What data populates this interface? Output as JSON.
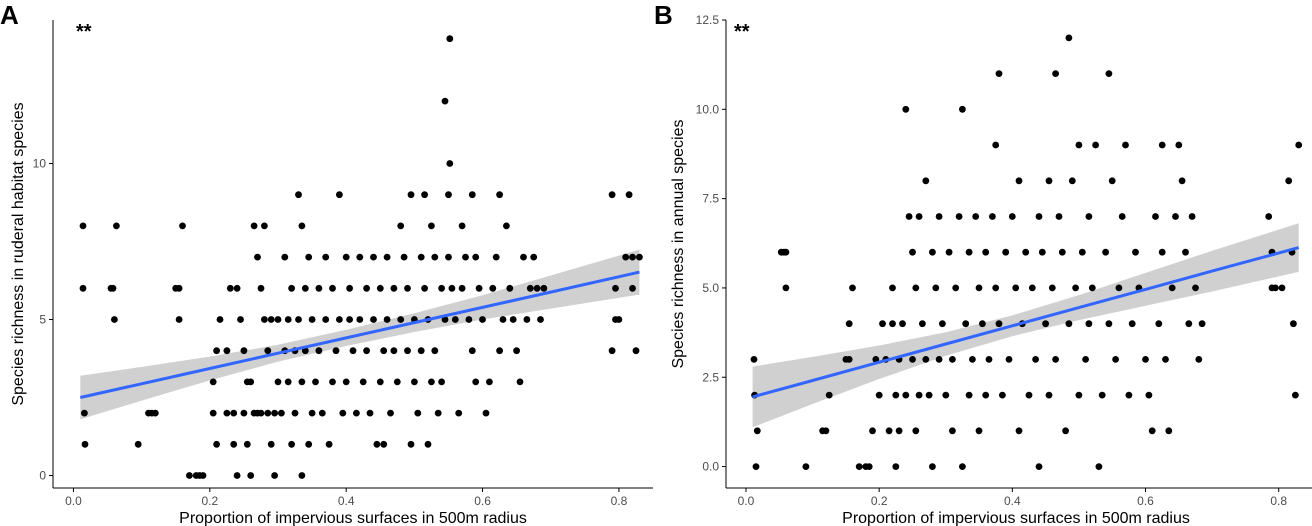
{
  "chart_data": [
    {
      "panel_label": "A",
      "type": "scatter",
      "significance": "**",
      "xlabel": "Proportion of impervious surfaces in 500m radius",
      "ylabel": "Species richness in ruderal habitat species",
      "xlim": [
        -0.03,
        0.85
      ],
      "ylim": [
        -0.4,
        14.6
      ],
      "xticks": [
        0.0,
        0.2,
        0.4,
        0.6,
        0.8
      ],
      "xtick_labels": [
        "0.0",
        "0.2",
        "0.4",
        "0.6",
        "0.8"
      ],
      "yticks": [
        0,
        5,
        10
      ],
      "ytick_labels": [
        "0",
        "5",
        "10"
      ],
      "fit_line": {
        "x": [
          0.01,
          0.1,
          0.2,
          0.3,
          0.4,
          0.5,
          0.6,
          0.7,
          0.83
        ],
        "y": [
          2.5,
          2.94,
          3.43,
          3.92,
          4.41,
          4.9,
          5.39,
          5.88,
          6.52
        ],
        "ci_low": [
          1.8,
          2.4,
          3.05,
          3.65,
          4.15,
          4.6,
          5.0,
          5.35,
          5.8
        ],
        "ci_high": [
          3.2,
          3.48,
          3.81,
          4.19,
          4.67,
          5.2,
          5.78,
          6.41,
          7.24
        ],
        "color": "#3366ff",
        "band_color": "#c8c8c8"
      },
      "points": [
        [
          0.014,
          8
        ],
        [
          0.014,
          6
        ],
        [
          0.016,
          2
        ],
        [
          0.017,
          1
        ],
        [
          0.055,
          6
        ],
        [
          0.058,
          6
        ],
        [
          0.06,
          5
        ],
        [
          0.063,
          8
        ],
        [
          0.095,
          1
        ],
        [
          0.11,
          2
        ],
        [
          0.115,
          2
        ],
        [
          0.12,
          2
        ],
        [
          0.15,
          6
        ],
        [
          0.155,
          6
        ],
        [
          0.155,
          5
        ],
        [
          0.16,
          8
        ],
        [
          0.17,
          0
        ],
        [
          0.18,
          0
        ],
        [
          0.185,
          0
        ],
        [
          0.19,
          0
        ],
        [
          0.205,
          3
        ],
        [
          0.205,
          2
        ],
        [
          0.21,
          1
        ],
        [
          0.21,
          4
        ],
        [
          0.215,
          5
        ],
        [
          0.225,
          4
        ],
        [
          0.225,
          2
        ],
        [
          0.23,
          6
        ],
        [
          0.235,
          2
        ],
        [
          0.235,
          1
        ],
        [
          0.24,
          6
        ],
        [
          0.24,
          0
        ],
        [
          0.245,
          5
        ],
        [
          0.25,
          2
        ],
        [
          0.25,
          4
        ],
        [
          0.255,
          3
        ],
        [
          0.255,
          1
        ],
        [
          0.26,
          3
        ],
        [
          0.26,
          0
        ],
        [
          0.265,
          2
        ],
        [
          0.265,
          8
        ],
        [
          0.27,
          7
        ],
        [
          0.27,
          2
        ],
        [
          0.275,
          2
        ],
        [
          0.275,
          6
        ],
        [
          0.28,
          5
        ],
        [
          0.28,
          8
        ],
        [
          0.285,
          4
        ],
        [
          0.285,
          2
        ],
        [
          0.29,
          1
        ],
        [
          0.29,
          5
        ],
        [
          0.295,
          2
        ],
        [
          0.295,
          0
        ],
        [
          0.3,
          3
        ],
        [
          0.3,
          5
        ],
        [
          0.305,
          2
        ],
        [
          0.31,
          4
        ],
        [
          0.31,
          7
        ],
        [
          0.315,
          5
        ],
        [
          0.315,
          3
        ],
        [
          0.32,
          6
        ],
        [
          0.32,
          1
        ],
        [
          0.325,
          4
        ],
        [
          0.325,
          2
        ],
        [
          0.33,
          9
        ],
        [
          0.33,
          5
        ],
        [
          0.335,
          8
        ],
        [
          0.335,
          3
        ],
        [
          0.335,
          0
        ],
        [
          0.34,
          6
        ],
        [
          0.34,
          4
        ],
        [
          0.345,
          7
        ],
        [
          0.345,
          1
        ],
        [
          0.35,
          2
        ],
        [
          0.35,
          5
        ],
        [
          0.355,
          3
        ],
        [
          0.36,
          6
        ],
        [
          0.36,
          4
        ],
        [
          0.365,
          2
        ],
        [
          0.37,
          7
        ],
        [
          0.37,
          5
        ],
        [
          0.375,
          1
        ],
        [
          0.38,
          3
        ],
        [
          0.38,
          6
        ],
        [
          0.385,
          4
        ],
        [
          0.39,
          9
        ],
        [
          0.39,
          5
        ],
        [
          0.395,
          2
        ],
        [
          0.4,
          7
        ],
        [
          0.4,
          3
        ],
        [
          0.405,
          6
        ],
        [
          0.405,
          5
        ],
        [
          0.41,
          4
        ],
        [
          0.415,
          2
        ],
        [
          0.42,
          7
        ],
        [
          0.42,
          5
        ],
        [
          0.425,
          3
        ],
        [
          0.43,
          6
        ],
        [
          0.43,
          4
        ],
        [
          0.435,
          2
        ],
        [
          0.44,
          5
        ],
        [
          0.44,
          7
        ],
        [
          0.445,
          1
        ],
        [
          0.45,
          3
        ],
        [
          0.45,
          6
        ],
        [
          0.455,
          4
        ],
        [
          0.455,
          1
        ],
        [
          0.46,
          5
        ],
        [
          0.46,
          7
        ],
        [
          0.465,
          2
        ],
        [
          0.47,
          6
        ],
        [
          0.47,
          4
        ],
        [
          0.475,
          3
        ],
        [
          0.48,
          8
        ],
        [
          0.48,
          5
        ],
        [
          0.485,
          7
        ],
        [
          0.49,
          6
        ],
        [
          0.49,
          4
        ],
        [
          0.495,
          9
        ],
        [
          0.495,
          1
        ],
        [
          0.5,
          5
        ],
        [
          0.5,
          3
        ],
        [
          0.505,
          2
        ],
        [
          0.51,
          7
        ],
        [
          0.51,
          4
        ],
        [
          0.515,
          9
        ],
        [
          0.515,
          6
        ],
        [
          0.52,
          5
        ],
        [
          0.52,
          1
        ],
        [
          0.525,
          8
        ],
        [
          0.525,
          3
        ],
        [
          0.53,
          7
        ],
        [
          0.53,
          4
        ],
        [
          0.535,
          2
        ],
        [
          0.54,
          6
        ],
        [
          0.54,
          3
        ],
        [
          0.545,
          5
        ],
        [
          0.545,
          12
        ],
        [
          0.55,
          9
        ],
        [
          0.55,
          7
        ],
        [
          0.552,
          14
        ],
        [
          0.552,
          10
        ],
        [
          0.555,
          6
        ],
        [
          0.56,
          5
        ],
        [
          0.565,
          2
        ],
        [
          0.57,
          8
        ],
        [
          0.57,
          6
        ],
        [
          0.575,
          7
        ],
        [
          0.58,
          5
        ],
        [
          0.585,
          4
        ],
        [
          0.585,
          9
        ],
        [
          0.59,
          3
        ],
        [
          0.59,
          7
        ],
        [
          0.595,
          6
        ],
        [
          0.6,
          5
        ],
        [
          0.605,
          2
        ],
        [
          0.61,
          3
        ],
        [
          0.615,
          6
        ],
        [
          0.62,
          7
        ],
        [
          0.625,
          9
        ],
        [
          0.625,
          4
        ],
        [
          0.63,
          5
        ],
        [
          0.635,
          8
        ],
        [
          0.64,
          6
        ],
        [
          0.645,
          5
        ],
        [
          0.65,
          4
        ],
        [
          0.655,
          3
        ],
        [
          0.66,
          7
        ],
        [
          0.665,
          5
        ],
        [
          0.67,
          6
        ],
        [
          0.675,
          7
        ],
        [
          0.68,
          6
        ],
        [
          0.685,
          5
        ],
        [
          0.69,
          6
        ],
        [
          0.79,
          9
        ],
        [
          0.79,
          4
        ],
        [
          0.795,
          5
        ],
        [
          0.795,
          6
        ],
        [
          0.8,
          5
        ],
        [
          0.81,
          7
        ],
        [
          0.815,
          9
        ],
        [
          0.82,
          6
        ],
        [
          0.82,
          7
        ],
        [
          0.825,
          4
        ],
        [
          0.83,
          7
        ]
      ]
    },
    {
      "panel_label": "B",
      "type": "scatter",
      "significance": "**",
      "xlabel": "Proportion of impervious surfaces in 500m radius",
      "ylabel": "Species richness in annual species",
      "xlim": [
        -0.03,
        0.85
      ],
      "ylim": [
        -0.6,
        12.5
      ],
      "xticks": [
        0.0,
        0.2,
        0.4,
        0.6,
        0.8
      ],
      "xtick_labels": [
        "0.0",
        "0.2",
        "0.4",
        "0.6",
        "0.8"
      ],
      "yticks": [
        0.0,
        2.5,
        5.0,
        7.5,
        10.0,
        12.5
      ],
      "ytick_labels": [
        "0.0",
        "2.5",
        "5.0",
        "7.5",
        "10.0",
        "12.5"
      ],
      "fit_line": {
        "x": [
          0.01,
          0.1,
          0.2,
          0.3,
          0.4,
          0.5,
          0.6,
          0.7,
          0.83
        ],
        "y": [
          1.95,
          2.41,
          2.92,
          3.43,
          3.94,
          4.45,
          4.96,
          5.47,
          6.13
        ],
        "ci_low": [
          1.1,
          1.75,
          2.45,
          3.1,
          3.65,
          4.1,
          4.5,
          4.9,
          5.45
        ],
        "ci_high": [
          2.8,
          3.07,
          3.39,
          3.76,
          4.23,
          4.8,
          5.42,
          6.04,
          6.81
        ],
        "color": "#3366ff",
        "band_color": "#c8c8c8"
      },
      "points": [
        [
          0.012,
          3
        ],
        [
          0.013,
          2
        ],
        [
          0.015,
          0
        ],
        [
          0.017,
          1
        ],
        [
          0.053,
          6
        ],
        [
          0.057,
          6
        ],
        [
          0.06,
          6
        ],
        [
          0.06,
          5
        ],
        [
          0.09,
          0
        ],
        [
          0.115,
          1
        ],
        [
          0.12,
          1
        ],
        [
          0.125,
          2
        ],
        [
          0.15,
          3
        ],
        [
          0.155,
          3
        ],
        [
          0.155,
          4
        ],
        [
          0.16,
          5
        ],
        [
          0.17,
          0
        ],
        [
          0.18,
          0
        ],
        [
          0.185,
          0
        ],
        [
          0.19,
          1
        ],
        [
          0.195,
          3
        ],
        [
          0.2,
          2
        ],
        [
          0.205,
          4
        ],
        [
          0.21,
          3
        ],
        [
          0.215,
          1
        ],
        [
          0.22,
          4
        ],
        [
          0.22,
          5
        ],
        [
          0.225,
          2
        ],
        [
          0.225,
          0
        ],
        [
          0.23,
          3
        ],
        [
          0.23,
          1
        ],
        [
          0.235,
          4
        ],
        [
          0.24,
          10
        ],
        [
          0.24,
          2
        ],
        [
          0.245,
          7
        ],
        [
          0.25,
          6
        ],
        [
          0.25,
          3
        ],
        [
          0.255,
          1
        ],
        [
          0.255,
          5
        ],
        [
          0.26,
          2
        ],
        [
          0.26,
          7
        ],
        [
          0.265,
          4
        ],
        [
          0.27,
          3
        ],
        [
          0.27,
          8
        ],
        [
          0.275,
          2
        ],
        [
          0.28,
          6
        ],
        [
          0.28,
          0
        ],
        [
          0.285,
          5
        ],
        [
          0.29,
          3
        ],
        [
          0.29,
          7
        ],
        [
          0.295,
          4
        ],
        [
          0.3,
          2
        ],
        [
          0.305,
          6
        ],
        [
          0.31,
          1
        ],
        [
          0.31,
          3
        ],
        [
          0.315,
          5
        ],
        [
          0.32,
          7
        ],
        [
          0.325,
          10
        ],
        [
          0.325,
          0
        ],
        [
          0.33,
          4
        ],
        [
          0.335,
          2
        ],
        [
          0.335,
          6
        ],
        [
          0.34,
          3
        ],
        [
          0.345,
          7
        ],
        [
          0.35,
          5
        ],
        [
          0.35,
          1
        ],
        [
          0.355,
          4
        ],
        [
          0.36,
          2
        ],
        [
          0.36,
          6
        ],
        [
          0.365,
          3
        ],
        [
          0.37,
          7
        ],
        [
          0.375,
          9
        ],
        [
          0.375,
          5
        ],
        [
          0.38,
          11
        ],
        [
          0.38,
          4
        ],
        [
          0.385,
          2
        ],
        [
          0.39,
          6
        ],
        [
          0.395,
          3
        ],
        [
          0.4,
          7
        ],
        [
          0.405,
          5
        ],
        [
          0.41,
          1
        ],
        [
          0.41,
          8
        ],
        [
          0.415,
          4
        ],
        [
          0.42,
          6
        ],
        [
          0.425,
          2
        ],
        [
          0.43,
          5
        ],
        [
          0.435,
          3
        ],
        [
          0.44,
          7
        ],
        [
          0.44,
          0
        ],
        [
          0.445,
          6
        ],
        [
          0.45,
          4
        ],
        [
          0.455,
          2
        ],
        [
          0.455,
          8
        ],
        [
          0.46,
          5
        ],
        [
          0.465,
          11
        ],
        [
          0.465,
          3
        ],
        [
          0.47,
          7
        ],
        [
          0.475,
          6
        ],
        [
          0.48,
          1
        ],
        [
          0.485,
          12
        ],
        [
          0.485,
          4
        ],
        [
          0.49,
          8
        ],
        [
          0.495,
          5
        ],
        [
          0.5,
          2
        ],
        [
          0.5,
          9
        ],
        [
          0.505,
          6
        ],
        [
          0.51,
          3
        ],
        [
          0.515,
          7
        ],
        [
          0.515,
          4
        ],
        [
          0.52,
          5
        ],
        [
          0.525,
          9
        ],
        [
          0.53,
          0
        ],
        [
          0.535,
          2
        ],
        [
          0.54,
          6
        ],
        [
          0.545,
          11
        ],
        [
          0.545,
          4
        ],
        [
          0.55,
          8
        ],
        [
          0.555,
          3
        ],
        [
          0.56,
          5
        ],
        [
          0.565,
          7
        ],
        [
          0.57,
          9
        ],
        [
          0.575,
          2
        ],
        [
          0.58,
          4
        ],
        [
          0.585,
          6
        ],
        [
          0.59,
          5
        ],
        [
          0.6,
          3
        ],
        [
          0.605,
          2
        ],
        [
          0.61,
          1
        ],
        [
          0.615,
          7
        ],
        [
          0.62,
          4
        ],
        [
          0.625,
          9
        ],
        [
          0.625,
          6
        ],
        [
          0.63,
          3
        ],
        [
          0.635,
          1
        ],
        [
          0.64,
          5
        ],
        [
          0.645,
          7
        ],
        [
          0.65,
          9
        ],
        [
          0.655,
          8
        ],
        [
          0.66,
          6
        ],
        [
          0.665,
          4
        ],
        [
          0.67,
          7
        ],
        [
          0.675,
          5
        ],
        [
          0.68,
          3
        ],
        [
          0.685,
          4
        ],
        [
          0.785,
          7
        ],
        [
          0.79,
          5
        ],
        [
          0.79,
          6
        ],
        [
          0.795,
          5
        ],
        [
          0.805,
          5
        ],
        [
          0.815,
          8
        ],
        [
          0.82,
          6
        ],
        [
          0.822,
          4
        ],
        [
          0.825,
          2
        ],
        [
          0.83,
          9
        ]
      ]
    }
  ]
}
